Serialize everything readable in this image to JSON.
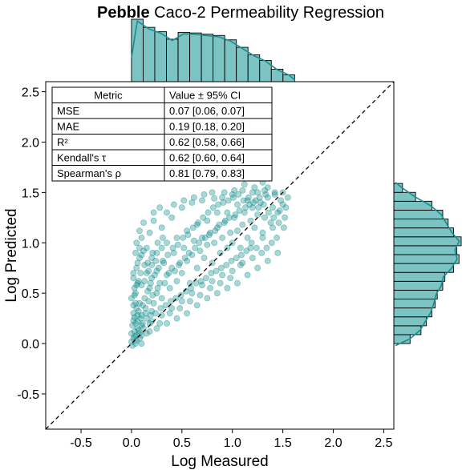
{
  "title": {
    "bold": "Pebble",
    "rest": " Caco-2 Permeability Regression"
  },
  "chart_data": {
    "type": "scatter",
    "xlabel": "Log Measured",
    "ylabel": "Log Predicted",
    "xlim": [
      -0.85,
      2.6
    ],
    "ylim": [
      -0.85,
      2.6
    ],
    "xticks": [
      -0.5,
      0.0,
      0.5,
      1.0,
      1.5,
      2.0,
      2.5
    ],
    "yticks": [
      -0.5,
      0.0,
      0.5,
      1.0,
      1.5,
      2.0,
      2.5
    ],
    "xtick_labels": [
      "-0.5",
      "0.0",
      "0.5",
      "1.0",
      "1.5",
      "2.0",
      "2.5"
    ],
    "ytick_labels": [
      "-0.5",
      "0.0",
      "0.5",
      "1.0",
      "1.5",
      "2.0",
      "2.5"
    ],
    "identity_line": true,
    "point_color": "#0b8a8a",
    "point_alpha": 0.35,
    "hist_color": "#7cc3c3",
    "kde_color": "#1a8c8c",
    "scatter_points": [
      [
        0.02,
        0.05
      ],
      [
        0.05,
        0.08
      ],
      [
        0.03,
        0.12
      ],
      [
        0.08,
        0.1
      ],
      [
        0.1,
        0.18
      ],
      [
        0.0,
        0.02
      ],
      [
        0.04,
        0.0
      ],
      [
        0.06,
        0.22
      ],
      [
        0.12,
        0.15
      ],
      [
        0.15,
        0.25
      ],
      [
        0.02,
        0.3
      ],
      [
        0.05,
        0.35
      ],
      [
        0.08,
        0.4
      ],
      [
        0.1,
        0.28
      ],
      [
        0.13,
        0.45
      ],
      [
        0.18,
        0.2
      ],
      [
        0.2,
        0.32
      ],
      [
        0.22,
        0.4
      ],
      [
        0.25,
        0.5
      ],
      [
        0.0,
        0.45
      ],
      [
        0.03,
        0.55
      ],
      [
        0.07,
        0.62
      ],
      [
        0.1,
        0.58
      ],
      [
        0.15,
        0.7
      ],
      [
        0.05,
        0.75
      ],
      [
        0.08,
        0.85
      ],
      [
        0.12,
        0.92
      ],
      [
        0.02,
        0.65
      ],
      [
        0.18,
        0.55
      ],
      [
        0.2,
        0.65
      ],
      [
        0.25,
        0.72
      ],
      [
        0.28,
        0.6
      ],
      [
        0.3,
        0.45
      ],
      [
        0.32,
        0.8
      ],
      [
        0.35,
        0.68
      ],
      [
        0.38,
        0.55
      ],
      [
        0.4,
        0.75
      ],
      [
        0.42,
        0.9
      ],
      [
        0.45,
        0.62
      ],
      [
        0.48,
        0.8
      ],
      [
        0.5,
        0.7
      ],
      [
        0.52,
        0.95
      ],
      [
        0.55,
        0.82
      ],
      [
        0.58,
        0.6
      ],
      [
        0.6,
        0.88
      ],
      [
        0.62,
        1.02
      ],
      [
        0.65,
        0.75
      ],
      [
        0.68,
        0.92
      ],
      [
        0.7,
        1.05
      ],
      [
        0.72,
        0.85
      ],
      [
        0.75,
        0.98
      ],
      [
        0.78,
        1.1
      ],
      [
        0.8,
        0.8
      ],
      [
        0.82,
        1.0
      ],
      [
        0.85,
        1.15
      ],
      [
        0.88,
        0.9
      ],
      [
        0.9,
        1.05
      ],
      [
        0.92,
        1.2
      ],
      [
        0.95,
        0.95
      ],
      [
        0.98,
        1.1
      ],
      [
        1.0,
        1.0
      ],
      [
        1.02,
        1.25
      ],
      [
        1.05,
        1.12
      ],
      [
        1.08,
        0.95
      ],
      [
        1.1,
        1.18
      ],
      [
        1.12,
        1.3
      ],
      [
        1.15,
        1.05
      ],
      [
        1.18,
        1.22
      ],
      [
        1.2,
        1.35
      ],
      [
        1.22,
        1.15
      ],
      [
        1.25,
        1.28
      ],
      [
        1.28,
        1.4
      ],
      [
        1.3,
        1.1
      ],
      [
        1.32,
        1.25
      ],
      [
        1.35,
        1.45
      ],
      [
        1.38,
        1.2
      ],
      [
        1.4,
        1.35
      ],
      [
        1.42,
        1.5
      ],
      [
        1.45,
        1.3
      ],
      [
        1.48,
        1.42
      ],
      [
        1.5,
        1.38
      ],
      [
        1.52,
        1.25
      ],
      [
        1.55,
        1.45
      ],
      [
        1.3,
        1.6
      ],
      [
        1.25,
        1.5
      ],
      [
        1.15,
        1.42
      ],
      [
        1.05,
        1.38
      ],
      [
        0.95,
        1.3
      ],
      [
        0.85,
        1.3
      ],
      [
        0.75,
        1.22
      ],
      [
        0.65,
        1.18
      ],
      [
        0.55,
        1.12
      ],
      [
        0.45,
        1.05
      ],
      [
        0.35,
        1.0
      ],
      [
        0.3,
        0.95
      ],
      [
        0.25,
        0.9
      ],
      [
        0.2,
        0.85
      ],
      [
        0.15,
        0.95
      ],
      [
        0.1,
        1.05
      ],
      [
        0.05,
        1.0
      ],
      [
        0.08,
        1.12
      ],
      [
        0.12,
        1.2
      ],
      [
        0.18,
        1.1
      ],
      [
        0.22,
        1.22
      ],
      [
        0.3,
        1.15
      ],
      [
        0.35,
        1.3
      ],
      [
        0.4,
        1.25
      ],
      [
        0.5,
        1.35
      ],
      [
        0.6,
        1.4
      ],
      [
        0.7,
        1.42
      ],
      [
        0.8,
        1.5
      ],
      [
        0.9,
        1.45
      ],
      [
        1.0,
        1.48
      ],
      [
        1.1,
        1.52
      ],
      [
        1.2,
        1.5
      ],
      [
        1.35,
        1.55
      ],
      [
        0.15,
        0.1
      ],
      [
        0.25,
        0.15
      ],
      [
        0.35,
        0.2
      ],
      [
        0.45,
        0.25
      ],
      [
        0.55,
        0.3
      ],
      [
        0.65,
        0.38
      ],
      [
        0.75,
        0.45
      ],
      [
        0.85,
        0.5
      ],
      [
        0.95,
        0.55
      ],
      [
        1.05,
        0.6
      ],
      [
        1.15,
        0.68
      ],
      [
        1.25,
        0.75
      ],
      [
        1.35,
        0.82
      ],
      [
        1.45,
        0.9
      ],
      [
        1.2,
        0.85
      ],
      [
        1.1,
        0.8
      ],
      [
        1.0,
        0.72
      ],
      [
        0.9,
        0.68
      ],
      [
        0.8,
        0.62
      ],
      [
        0.7,
        0.58
      ],
      [
        0.6,
        0.5
      ],
      [
        0.5,
        0.42
      ],
      [
        0.4,
        0.35
      ],
      [
        0.3,
        0.28
      ],
      [
        0.2,
        0.22
      ],
      [
        0.1,
        0.08
      ],
      [
        0.06,
        0.15
      ],
      [
        0.04,
        0.2
      ],
      [
        0.09,
        0.25
      ],
      [
        0.14,
        0.35
      ],
      [
        0.17,
        0.42
      ],
      [
        0.21,
        0.48
      ],
      [
        0.26,
        0.55
      ],
      [
        0.33,
        0.6
      ],
      [
        0.37,
        0.7
      ],
      [
        0.43,
        0.72
      ],
      [
        0.47,
        0.78
      ],
      [
        0.53,
        0.85
      ],
      [
        0.57,
        0.9
      ],
      [
        0.63,
        0.95
      ],
      [
        0.67,
        1.0
      ],
      [
        0.73,
        1.05
      ],
      [
        0.77,
        1.08
      ],
      [
        0.83,
        1.12
      ],
      [
        0.87,
        1.18
      ],
      [
        0.93,
        1.22
      ],
      [
        0.97,
        1.25
      ],
      [
        1.03,
        1.28
      ],
      [
        1.07,
        1.32
      ],
      [
        1.13,
        1.35
      ],
      [
        1.17,
        1.38
      ],
      [
        1.23,
        1.42
      ],
      [
        1.27,
        1.45
      ],
      [
        1.33,
        1.48
      ],
      [
        0.01,
        0.18
      ],
      [
        0.03,
        0.26
      ],
      [
        0.07,
        0.32
      ],
      [
        0.11,
        0.38
      ],
      [
        0.16,
        0.52
      ],
      [
        0.19,
        0.6
      ],
      [
        0.23,
        0.68
      ],
      [
        0.27,
        0.75
      ],
      [
        0.31,
        0.82
      ],
      [
        0.36,
        0.88
      ],
      [
        0.41,
        0.95
      ],
      [
        0.46,
        0.98
      ],
      [
        0.51,
        1.05
      ],
      [
        0.56,
        1.08
      ],
      [
        0.61,
        1.15
      ],
      [
        0.66,
        1.2
      ],
      [
        0.71,
        1.25
      ],
      [
        0.76,
        1.3
      ],
      [
        0.81,
        1.35
      ],
      [
        0.86,
        1.38
      ],
      [
        0.91,
        1.4
      ],
      [
        0.96,
        1.42
      ],
      [
        1.01,
        1.45
      ],
      [
        1.06,
        1.48
      ],
      [
        1.11,
        1.42
      ],
      [
        1.16,
        1.45
      ],
      [
        1.21,
        1.4
      ],
      [
        1.26,
        1.35
      ],
      [
        1.31,
        1.38
      ],
      [
        1.36,
        1.3
      ],
      [
        1.41,
        1.25
      ],
      [
        1.46,
        1.2
      ],
      [
        1.51,
        1.15
      ],
      [
        1.44,
        1.05
      ],
      [
        1.39,
        1.0
      ],
      [
        1.34,
        0.95
      ],
      [
        1.29,
        0.9
      ],
      [
        1.24,
        0.95
      ],
      [
        1.19,
        1.0
      ],
      [
        1.14,
        0.92
      ],
      [
        1.09,
        0.88
      ],
      [
        1.04,
        0.85
      ],
      [
        0.99,
        0.82
      ],
      [
        0.94,
        0.78
      ],
      [
        0.89,
        0.75
      ],
      [
        0.84,
        0.72
      ],
      [
        0.79,
        0.7
      ],
      [
        0.74,
        0.65
      ],
      [
        0.69,
        0.62
      ],
      [
        0.64,
        0.6
      ],
      [
        0.59,
        0.55
      ],
      [
        0.54,
        0.52
      ],
      [
        0.49,
        0.48
      ],
      [
        0.44,
        0.45
      ],
      [
        0.39,
        0.42
      ],
      [
        0.34,
        0.38
      ],
      [
        0.29,
        0.35
      ],
      [
        0.24,
        0.3
      ],
      [
        0.19,
        0.28
      ],
      [
        0.14,
        0.3
      ],
      [
        0.0,
        0.1
      ],
      [
        0.02,
        0.38
      ],
      [
        0.04,
        0.5
      ],
      [
        0.06,
        0.6
      ],
      [
        0.09,
        0.7
      ],
      [
        0.13,
        0.78
      ],
      [
        0.16,
        0.8
      ],
      [
        0.21,
        0.9
      ],
      [
        0.26,
        1.0
      ],
      [
        0.31,
        1.05
      ],
      [
        0.22,
        1.3
      ],
      [
        0.28,
        1.35
      ],
      [
        0.42,
        1.38
      ],
      [
        0.52,
        1.42
      ],
      [
        0.62,
        1.45
      ],
      [
        0.72,
        1.48
      ],
      [
        0.82,
        1.44
      ],
      [
        0.92,
        1.5
      ],
      [
        1.02,
        1.52
      ],
      [
        1.12,
        1.58
      ],
      [
        1.22,
        1.55
      ],
      [
        1.32,
        1.52
      ],
      [
        1.42,
        1.48
      ],
      [
        1.5,
        1.5
      ],
      [
        1.53,
        1.35
      ],
      [
        1.47,
        1.32
      ],
      [
        1.4,
        1.15
      ],
      [
        1.3,
        1.05
      ],
      [
        1.18,
        0.95
      ],
      [
        1.08,
        0.78
      ],
      [
        0.98,
        0.65
      ],
      [
        0.88,
        0.6
      ],
      [
        0.78,
        0.55
      ],
      [
        0.68,
        0.48
      ],
      [
        0.58,
        0.42
      ],
      [
        0.48,
        0.35
      ],
      [
        0.38,
        0.3
      ],
      [
        0.28,
        0.2
      ],
      [
        0.18,
        0.12
      ],
      [
        0.08,
        0.05
      ],
      [
        0.01,
        -0.02
      ],
      [
        0.05,
        0.03
      ],
      [
        0.1,
        0.0
      ],
      [
        0.03,
        0.07
      ],
      [
        0.07,
        0.13
      ],
      [
        0.11,
        0.2
      ],
      [
        0.02,
        0.23
      ],
      [
        0.06,
        0.28
      ],
      [
        0.04,
        0.4
      ],
      [
        0.03,
        0.48
      ],
      [
        0.05,
        0.58
      ],
      [
        0.02,
        0.7
      ],
      [
        0.06,
        0.8
      ],
      [
        0.04,
        0.9
      ],
      [
        0.08,
        0.95
      ],
      [
        0.1,
        0.88
      ],
      [
        0.13,
        0.62
      ],
      [
        0.17,
        0.72
      ],
      [
        0.2,
        0.78
      ],
      [
        0.24,
        0.82
      ]
    ],
    "top_hist": [
      1.0,
      0.87,
      0.8,
      0.68,
      0.79,
      0.78,
      0.76,
      0.74,
      0.67,
      0.55,
      0.43,
      0.34,
      0.2,
      0.11
    ],
    "right_hist": [
      0.15,
      0.25,
      0.3,
      0.35,
      0.38,
      0.4,
      0.45,
      0.47,
      0.55,
      0.6,
      0.58,
      0.62,
      0.55,
      0.5,
      0.45,
      0.35,
      0.2,
      0.08
    ]
  },
  "metrics_table": {
    "header": [
      "Metric",
      "Value ± 95% CI"
    ],
    "rows": [
      [
        "MSE",
        "0.07 [0.06, 0.07]"
      ],
      [
        "MAE",
        "0.19 [0.18, 0.20]"
      ],
      [
        "R²",
        "0.62 [0.58, 0.66]"
      ],
      [
        "Kendall's τ",
        "0.62 [0.60, 0.64]"
      ],
      [
        "Spearman's ρ",
        "0.81 [0.79, 0.83]"
      ]
    ]
  }
}
